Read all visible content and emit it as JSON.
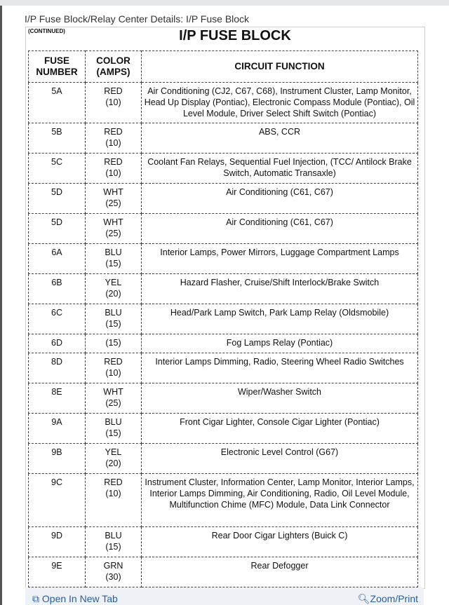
{
  "page_title": "I/P Fuse Block/Relay Center Details: I/P Fuse Block",
  "document": {
    "continued": "(CONTINUED)",
    "title": "I/P FUSE BLOCK",
    "headers": {
      "fuse": [
        "FUSE",
        "NUMBER"
      ],
      "color": [
        "COLOR",
        "(AMPS)"
      ],
      "function": "CIRCUIT FUNCTION"
    },
    "rows": [
      {
        "fuse": "5A",
        "color": "RED",
        "amps": "(10)",
        "function": "Air Conditioning (CJ2, C67, C68), Instrument Cluster, Lamp Monitor, Head Up Display (Pontiac), Electronic Compass Module (Pontiac), Oil Level Module, Driver Select Shift Switch (Pontiac)"
      },
      {
        "fuse": "5B",
        "color": "RED",
        "amps": "(10)",
        "function": "ABS, CCR"
      },
      {
        "fuse": "5C",
        "color": "RED",
        "amps": "(10)",
        "function": "Coolant Fan Relays, Sequential Fuel Injection, (TCC/ Antilock Brake Switch, Automatic Transaxle)"
      },
      {
        "fuse": "5D",
        "color": "WHT",
        "amps": "(25)",
        "function": "Air Conditioning (C61, C67)"
      },
      {
        "fuse": "5D",
        "color": "WHT",
        "amps": "(25)",
        "function": "Air Conditioning (C61, C67)"
      },
      {
        "fuse": "6A",
        "color": "BLU",
        "amps": "(15)",
        "function": "Interior Lamps, Power Mirrors, Luggage Compartment Lamps"
      },
      {
        "fuse": "6B",
        "color": "YEL",
        "amps": "(20)",
        "function": "Hazard Flasher, Cruise/Shift Interlock/Brake Switch"
      },
      {
        "fuse": "6C",
        "color": "BLU",
        "amps": "(15)",
        "function": "Head/Park Lamp Switch, Park Lamp Relay (Oldsmobile)"
      },
      {
        "fuse": "6D",
        "color": "(15)",
        "amps": "",
        "function": "Fog Lamps Relay (Pontiac)"
      },
      {
        "fuse": "8D",
        "color": "RED",
        "amps": "(10)",
        "function": "Interior Lamps Dimming, Radio, Steering Wheel Radio Switches"
      },
      {
        "fuse": "8E",
        "color": "WHT",
        "amps": "(25)",
        "function": "Wiper/Washer Switch"
      },
      {
        "fuse": "9A",
        "color": "BLU",
        "amps": "(15)",
        "function": "Front Cigar Lighter, Console Cigar Lighter (Pontiac)"
      },
      {
        "fuse": "9B",
        "color": "YEL",
        "amps": "(20)",
        "function": "Electronic Level Control (G67)"
      },
      {
        "fuse": "9C",
        "color": "RED",
        "amps": "(10)",
        "function": "Instrument Cluster, Information Center, Lamp Monitor, Interior Lamps, Interior Lamps Dimming, Air Conditioning, Radio, Oil Level Module, Multifunction Chime (MFC) Module, Data Link Connector"
      },
      {
        "fuse": "9D",
        "color": "BLU",
        "amps": "(15)",
        "function": "Rear Door Cigar Lighters (Buick C)"
      },
      {
        "fuse": "9E",
        "color": "GRN",
        "amps": "(30)",
        "function": "Rear Defogger"
      }
    ]
  },
  "footer": {
    "open_tab": "Open In New Tab",
    "zoom_print": "Zoom/Print",
    "open_icon": "open-new-tab-icon",
    "zoom_icon": "zoom-in-icon",
    "link_color": "#2a5d9f"
  }
}
